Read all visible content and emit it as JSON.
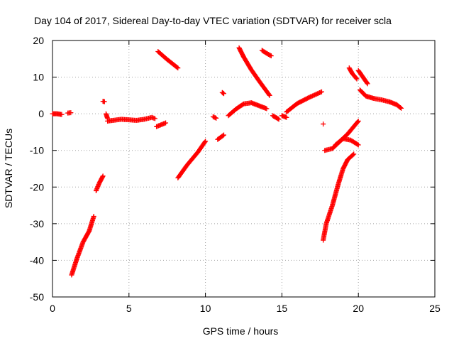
{
  "chart_data": {
    "type": "scatter",
    "title": "Day 104 of 2017, Sidereal Day-to-day VTEC variation (SDTVAR) for receiver scla",
    "xlabel": "GPS time / hours",
    "ylabel": "SDTVAR / TECUs",
    "xlim": [
      0,
      25
    ],
    "ylim": [
      -50,
      20
    ],
    "xticks": [
      0,
      5,
      10,
      15,
      20,
      25
    ],
    "yticks": [
      -50,
      -40,
      -30,
      -20,
      -10,
      0,
      10,
      20
    ],
    "grid": true,
    "marker": "plus",
    "color": "#ff0000",
    "segments": [
      {
        "x": [
          0.0,
          0.3,
          0.6
        ],
        "y": [
          0.0,
          0.0,
          -0.2
        ]
      },
      {
        "x": [
          1.0,
          1.2
        ],
        "y": [
          0.2,
          0.3
        ]
      },
      {
        "x": [
          1.25,
          1.6,
          2.0,
          2.4,
          2.7
        ],
        "y": [
          -44.0,
          -39.5,
          -35.0,
          -32.0,
          -28.0
        ]
      },
      {
        "x": [
          2.85,
          3.05,
          3.3
        ],
        "y": [
          -21.0,
          -19.0,
          -17.0
        ]
      },
      {
        "x": [
          3.3,
          3.4
        ],
        "y": [
          3.4,
          3.3
        ]
      },
      {
        "x": [
          3.5,
          3.6
        ],
        "y": [
          0.0,
          -1.3
        ]
      },
      {
        "x": [
          3.6,
          4.5,
          5.5,
          6.0,
          6.5,
          6.7
        ],
        "y": [
          -2.0,
          -1.5,
          -1.8,
          -1.5,
          -1.0,
          -1.3
        ]
      },
      {
        "x": [
          6.8,
          7.4
        ],
        "y": [
          -3.5,
          -2.5
        ]
      },
      {
        "x": [
          6.9,
          7.5,
          8.2
        ],
        "y": [
          17.0,
          14.8,
          12.5
        ]
      },
      {
        "x": [
          8.2,
          8.8,
          9.5,
          10.0
        ],
        "y": [
          -17.5,
          -14.0,
          -10.5,
          -7.5
        ]
      },
      {
        "x": [
          10.5,
          10.7
        ],
        "y": [
          -0.8,
          -1.2
        ]
      },
      {
        "x": [
          10.8,
          11.2
        ],
        "y": [
          -7.0,
          -5.8
        ]
      },
      {
        "x": [
          11.1,
          11.2
        ],
        "y": [
          5.8,
          5.5
        ]
      },
      {
        "x": [
          11.5,
          12.0,
          12.5,
          13.0,
          13.5,
          14.0
        ],
        "y": [
          -0.5,
          1.3,
          2.7,
          3.0,
          2.2,
          1.4
        ]
      },
      {
        "x": [
          12.2,
          12.5,
          13.0,
          13.5,
          14.2
        ],
        "y": [
          18.0,
          15.5,
          12.0,
          9.0,
          5.0
        ]
      },
      {
        "x": [
          13.7,
          14.0,
          14.3
        ],
        "y": [
          17.3,
          16.5,
          15.8
        ]
      },
      {
        "x": [
          14.4,
          14.8
        ],
        "y": [
          -0.5,
          -1.5
        ]
      },
      {
        "x": [
          15.0,
          15.3
        ],
        "y": [
          -0.5,
          -1.0
        ]
      },
      {
        "x": [
          15.3,
          16.0,
          16.8,
          17.6
        ],
        "y": [
          0.5,
          2.8,
          4.5,
          6.0
        ]
      },
      {
        "x": [
          17.7
        ],
        "y": [
          -2.8
        ]
      },
      {
        "x": [
          17.7,
          17.9,
          18.3,
          18.7,
          19.0,
          19.3,
          19.7
        ],
        "y": [
          -34.5,
          -30.0,
          -25.0,
          -19.0,
          -15.0,
          -12.5,
          -11.0
        ]
      },
      {
        "x": [
          17.8,
          18.3,
          18.8,
          19.3,
          19.8,
          20.0
        ],
        "y": [
          -10.0,
          -9.5,
          -7.5,
          -5.5,
          -3.0,
          -2.0
        ]
      },
      {
        "x": [
          18.5,
          19.0,
          19.5,
          20.0
        ],
        "y": [
          -8.5,
          -6.8,
          -7.2,
          -8.5
        ]
      },
      {
        "x": [
          19.4,
          19.6,
          19.9
        ],
        "y": [
          12.5,
          11.0,
          9.5
        ]
      },
      {
        "x": [
          20.0,
          20.3,
          20.6
        ],
        "y": [
          11.8,
          10.0,
          8.2
        ]
      },
      {
        "x": [
          20.1,
          20.5,
          21.0,
          21.5,
          22.0,
          22.5,
          22.8
        ],
        "y": [
          6.5,
          4.8,
          4.2,
          3.8,
          3.3,
          2.5,
          1.5
        ]
      }
    ]
  }
}
